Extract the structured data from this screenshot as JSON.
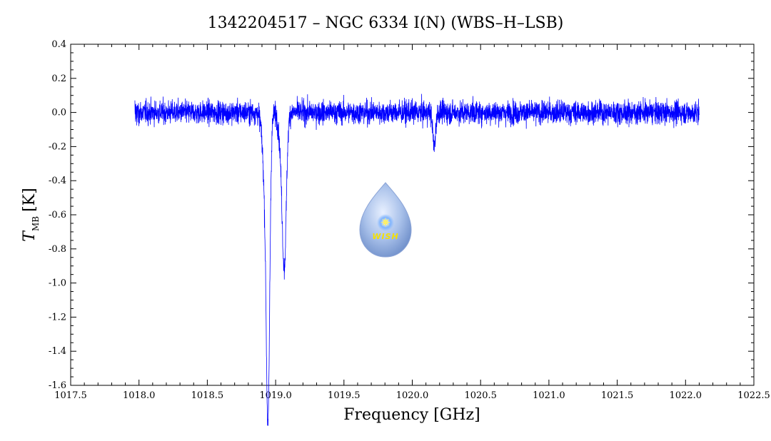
{
  "chart_data": {
    "type": "line",
    "title": "1342204517 – NGC 6334 I(N) (WBS–H–LSB)",
    "xlabel": "Frequency [GHz]",
    "ylabel_main": "T",
    "ylabel_sub": "MB",
    "ylabel_unit": "[K]",
    "xlim": [
      1017.5,
      1022.5
    ],
    "ylim": [
      -1.6,
      0.4
    ],
    "x_ticks": [
      "1017.5",
      "1018.0",
      "1018.5",
      "1019.0",
      "1019.5",
      "1020.0",
      "1020.5",
      "1021.0",
      "1021.5",
      "1022.0",
      "1022.5"
    ],
    "y_ticks": [
      "0.4",
      "0.2",
      "0.0",
      "-0.2",
      "-0.4",
      "-0.6",
      "-0.8",
      "-1.0",
      "-1.2",
      "-1.4",
      "-1.6"
    ],
    "series": [
      {
        "color": "#0000ff",
        "x_range": [
          1017.97,
          1022.1
        ],
        "noise_rms": 0.045,
        "features": [
          {
            "center": 1018.945,
            "depth": -1.41,
            "width": 0.012
          },
          {
            "center": 1018.93,
            "depth": -0.55,
            "width": 0.02
          },
          {
            "center": 1019.065,
            "depth": -0.68,
            "width": 0.014
          },
          {
            "center": 1019.05,
            "depth": -0.3,
            "width": 0.02
          },
          {
            "center": 1020.16,
            "depth": -0.2,
            "width": 0.01
          }
        ]
      }
    ],
    "grid": false
  },
  "logo": {
    "text": "WISH"
  },
  "colors": {
    "series": "#0000ff",
    "axes": "#000000",
    "logo_drop": "#9fb8e6",
    "logo_star": "#fff066"
  }
}
